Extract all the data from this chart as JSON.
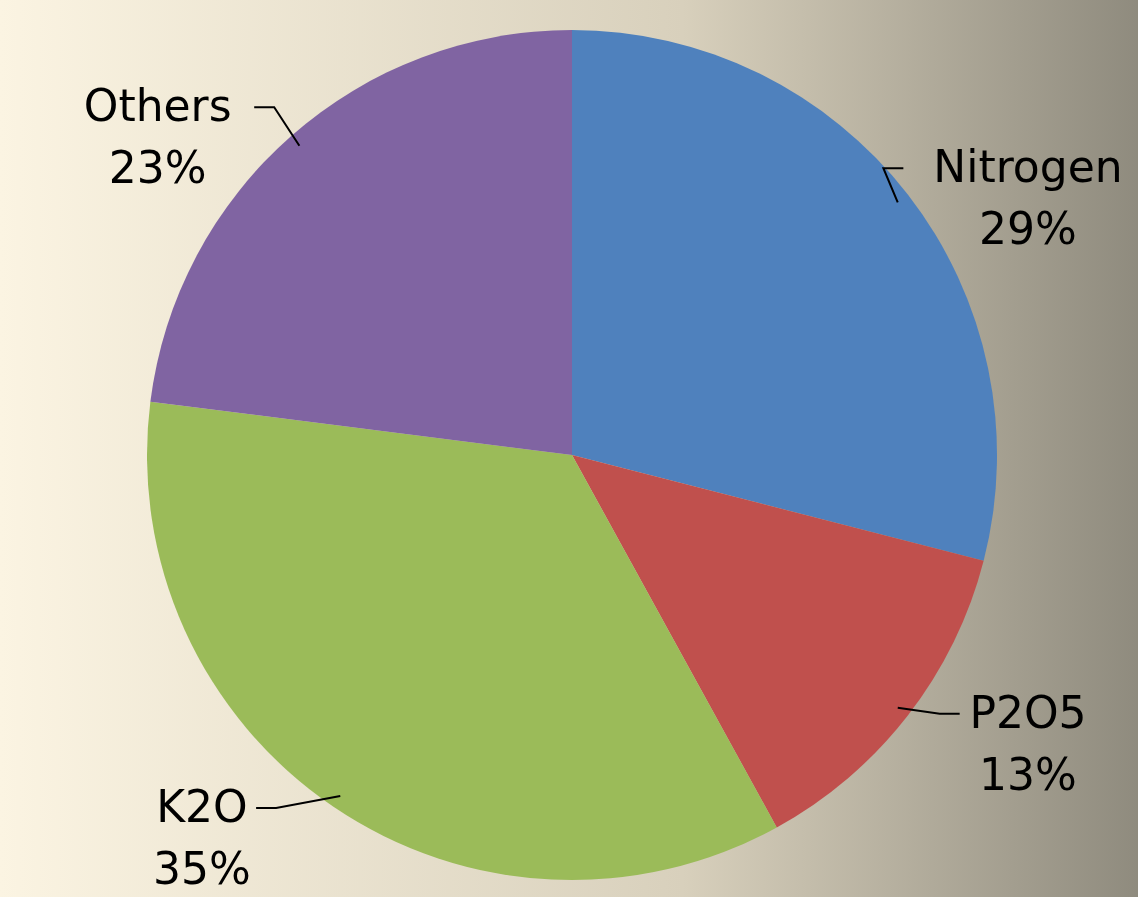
{
  "chart_data": {
    "type": "pie",
    "categories": [
      "Nitrogen",
      "P2O5",
      "K2O",
      "Others"
    ],
    "values": [
      29,
      13,
      35,
      23
    ],
    "colors": [
      "#4f81bd",
      "#c0504d",
      "#9bbb59",
      "#8064a2"
    ],
    "value_labels": [
      "29%",
      "13%",
      "35%",
      "23%"
    ]
  }
}
